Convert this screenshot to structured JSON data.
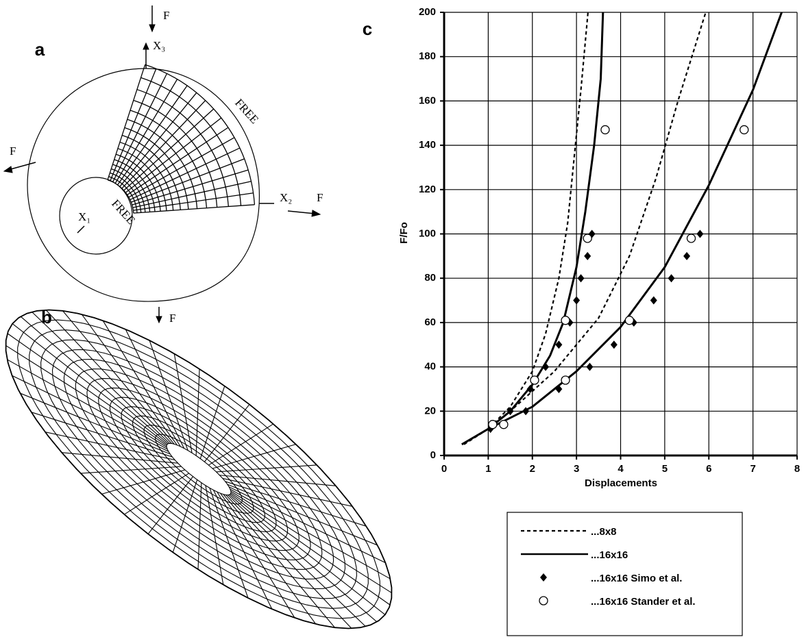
{
  "figure": {
    "panel_labels": [
      "a",
      "b",
      "c"
    ],
    "diagram_a": {
      "force_labels": [
        "F",
        "F",
        "F",
        "F"
      ],
      "axis_labels": [
        "X₃",
        "X₂",
        "X₁"
      ],
      "edge_labels": [
        "FREE",
        "FREE"
      ]
    }
  },
  "chart_data": {
    "type": "line",
    "xlabel": "Displacements",
    "ylabel": "F/Fo",
    "xlim": [
      0,
      8
    ],
    "ylim": [
      0,
      200
    ],
    "xticks": [
      0,
      1,
      2,
      3,
      4,
      5,
      6,
      7,
      8
    ],
    "yticks": [
      0,
      20,
      40,
      60,
      80,
      100,
      120,
      140,
      160,
      180,
      200
    ],
    "grid": true,
    "series": [
      {
        "name": "...8x8",
        "color": "#000000",
        "style": "dashed",
        "x": [
          0.45,
          1,
          1.5,
          2,
          2.3,
          2.6,
          2.8,
          2.95,
          3.1,
          3.26,
          null,
          0.45,
          1,
          1.5,
          2.5,
          3.5,
          4.2,
          4.8,
          5.3,
          5.93
        ],
        "values": [
          5,
          12,
          22,
          38,
          55,
          80,
          105,
          135,
          165,
          200,
          null,
          5,
          12,
          20,
          38,
          62,
          90,
          125,
          160,
          200
        ]
      },
      {
        "name": "...16x16",
        "color": "#000000",
        "style": "solid",
        "x": [
          0.4,
          1,
          1.5,
          2,
          2.4,
          2.7,
          3,
          3.2,
          3.4,
          3.55,
          3.6,
          null,
          0.4,
          1,
          2,
          3,
          4,
          5,
          6,
          7,
          7.65
        ],
        "values": [
          5,
          12,
          20,
          32,
          45,
          60,
          85,
          110,
          140,
          170,
          200,
          null,
          5,
          12,
          22,
          38,
          58,
          85,
          122,
          165,
          200
        ]
      },
      {
        "name": "...16x16 Simo et al.",
        "color": "#000000",
        "style": "diamond",
        "x": [
          1.05,
          1.5,
          1.95,
          2.3,
          2.6,
          2.85,
          3.0,
          3.1,
          3.25,
          3.35,
          1.85,
          2.6,
          3.3,
          3.85,
          4.3,
          4.75,
          5.15,
          5.5,
          5.8
        ],
        "values": [
          12,
          20,
          30,
          40,
          50,
          60,
          70,
          80,
          90,
          100,
          20,
          30,
          40,
          50,
          60,
          70,
          80,
          90,
          100
        ]
      },
      {
        "name": "...16x16 Stander et al.",
        "color": "#000000",
        "style": "circle",
        "x": [
          1.1,
          2.05,
          2.75,
          3.25,
          3.65,
          1.35,
          2.75,
          4.2,
          5.6,
          6.8
        ],
        "values": [
          14,
          34,
          61,
          98,
          147,
          14,
          34,
          61,
          98,
          147
        ]
      }
    ]
  }
}
